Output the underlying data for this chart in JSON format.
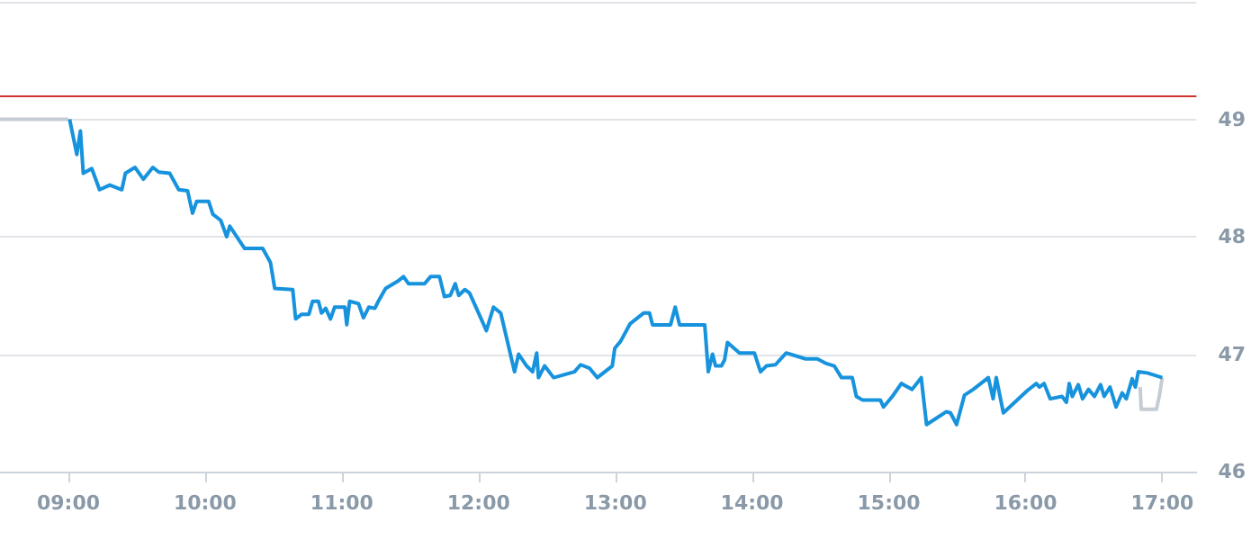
{
  "chart_data": {
    "type": "line",
    "xlim": [
      8.5,
      17.25
    ],
    "xticks": [
      {
        "value": 9,
        "label": "09:00"
      },
      {
        "value": 10,
        "label": "10:00"
      },
      {
        "value": 11,
        "label": "11:00"
      },
      {
        "value": 12,
        "label": "12:00"
      },
      {
        "value": 13,
        "label": "13:00"
      },
      {
        "value": 14,
        "label": "14:00"
      },
      {
        "value": 15,
        "label": "15:00"
      },
      {
        "value": 16,
        "label": "16:00"
      },
      {
        "value": 17,
        "label": "17:00"
      }
    ],
    "ylim": [
      46,
      50
    ],
    "yticks": [
      46,
      47,
      48,
      49,
      {
        "value": 50,
        "label": null
      }
    ],
    "grid": "y",
    "marker": "none",
    "line_style": "solid",
    "ref_lines": [
      {
        "axis": "y",
        "value": 49.2,
        "color": "#d0342c"
      }
    ],
    "series": [
      {
        "color": "#c5ccd3",
        "x": [
          8.5,
          9.0
        ],
        "values": [
          49.0,
          49.0
        ]
      },
      {
        "color": "#c5ccd3",
        "x": [
          16.838,
          16.846,
          16.957,
          16.978,
          17.0
        ],
        "values": [
          46.72,
          46.53,
          46.53,
          46.64,
          46.8
        ]
      },
      {
        "color": "#1793dd",
        "x": [
          9.009,
          9.062,
          9.088,
          9.109,
          9.171,
          9.228,
          9.303,
          9.391,
          9.417,
          9.487,
          9.549,
          9.618,
          9.662,
          9.741,
          9.807,
          9.872,
          9.908,
          9.938,
          10.026,
          10.057,
          10.114,
          10.158,
          10.18,
          10.289,
          10.421,
          10.478,
          10.509,
          10.641,
          10.662,
          10.707,
          10.759,
          10.786,
          10.829,
          10.851,
          10.882,
          10.917,
          10.947,
          11.022,
          11.036,
          11.057,
          11.122,
          11.158,
          11.197,
          11.241,
          11.267,
          11.32,
          11.408,
          11.451,
          11.487,
          11.605,
          11.649,
          11.714,
          11.75,
          11.793,
          11.829,
          11.855,
          11.899,
          11.934,
          12.0,
          12.057,
          12.109,
          12.162,
          12.263,
          12.293,
          12.351,
          12.395,
          12.425,
          12.438,
          12.483,
          12.549,
          12.701,
          12.746,
          12.812,
          12.868,
          12.978,
          12.996,
          13.039,
          13.109,
          13.207,
          13.25,
          13.272,
          13.404,
          13.438,
          13.47,
          13.654,
          13.68,
          13.711,
          13.733,
          13.776,
          13.799,
          13.82,
          13.908,
          14.017,
          14.062,
          14.105,
          14.171,
          14.25,
          14.391,
          14.478,
          14.543,
          14.601,
          14.654,
          14.733,
          14.763,
          14.807,
          14.938,
          14.961,
          15.026,
          15.092,
          15.171,
          15.237,
          15.276,
          15.355,
          15.421,
          15.451,
          15.496,
          15.553,
          15.618,
          15.728,
          15.763,
          15.786,
          15.838,
          16.013,
          16.079,
          16.101,
          16.136,
          16.18,
          16.267,
          16.299,
          16.32,
          16.342,
          16.386,
          16.417,
          16.461,
          16.504,
          16.549,
          16.575,
          16.618,
          16.662,
          16.707,
          16.737,
          16.78,
          16.803,
          16.825,
          16.891,
          17.0
        ],
        "values": [
          49.0,
          48.7,
          48.9,
          48.54,
          48.58,
          48.4,
          48.44,
          48.4,
          48.54,
          48.59,
          48.49,
          48.59,
          48.55,
          48.54,
          48.4,
          48.39,
          48.2,
          48.3,
          48.3,
          48.19,
          48.14,
          48.0,
          48.09,
          47.9,
          47.9,
          47.78,
          47.56,
          47.55,
          47.3,
          47.34,
          47.34,
          47.45,
          47.45,
          47.35,
          47.39,
          47.3,
          47.4,
          47.4,
          47.25,
          47.45,
          47.43,
          47.31,
          47.4,
          47.39,
          47.45,
          47.56,
          47.62,
          47.66,
          47.6,
          47.6,
          47.66,
          47.66,
          47.49,
          47.5,
          47.6,
          47.5,
          47.55,
          47.52,
          47.35,
          47.2,
          47.4,
          47.35,
          46.85,
          47.0,
          46.9,
          46.85,
          47.01,
          46.8,
          46.9,
          46.8,
          46.85,
          46.91,
          46.88,
          46.8,
          46.9,
          47.05,
          47.11,
          47.26,
          47.35,
          47.35,
          47.25,
          47.25,
          47.4,
          47.25,
          47.25,
          46.85,
          47.0,
          46.9,
          46.9,
          46.95,
          47.1,
          47.01,
          47.01,
          46.85,
          46.9,
          46.91,
          47.01,
          46.96,
          46.96,
          46.92,
          46.9,
          46.8,
          46.8,
          46.64,
          46.61,
          46.61,
          46.55,
          46.64,
          46.75,
          46.7,
          46.8,
          46.4,
          46.46,
          46.51,
          46.5,
          46.4,
          46.65,
          46.7,
          46.8,
          46.62,
          46.8,
          46.5,
          46.69,
          46.75,
          46.72,
          46.75,
          46.62,
          46.64,
          46.59,
          46.75,
          46.64,
          46.74,
          46.62,
          46.7,
          46.64,
          46.74,
          46.64,
          46.72,
          46.55,
          46.67,
          46.62,
          46.79,
          46.72,
          46.85,
          46.84,
          46.8
        ]
      }
    ]
  }
}
